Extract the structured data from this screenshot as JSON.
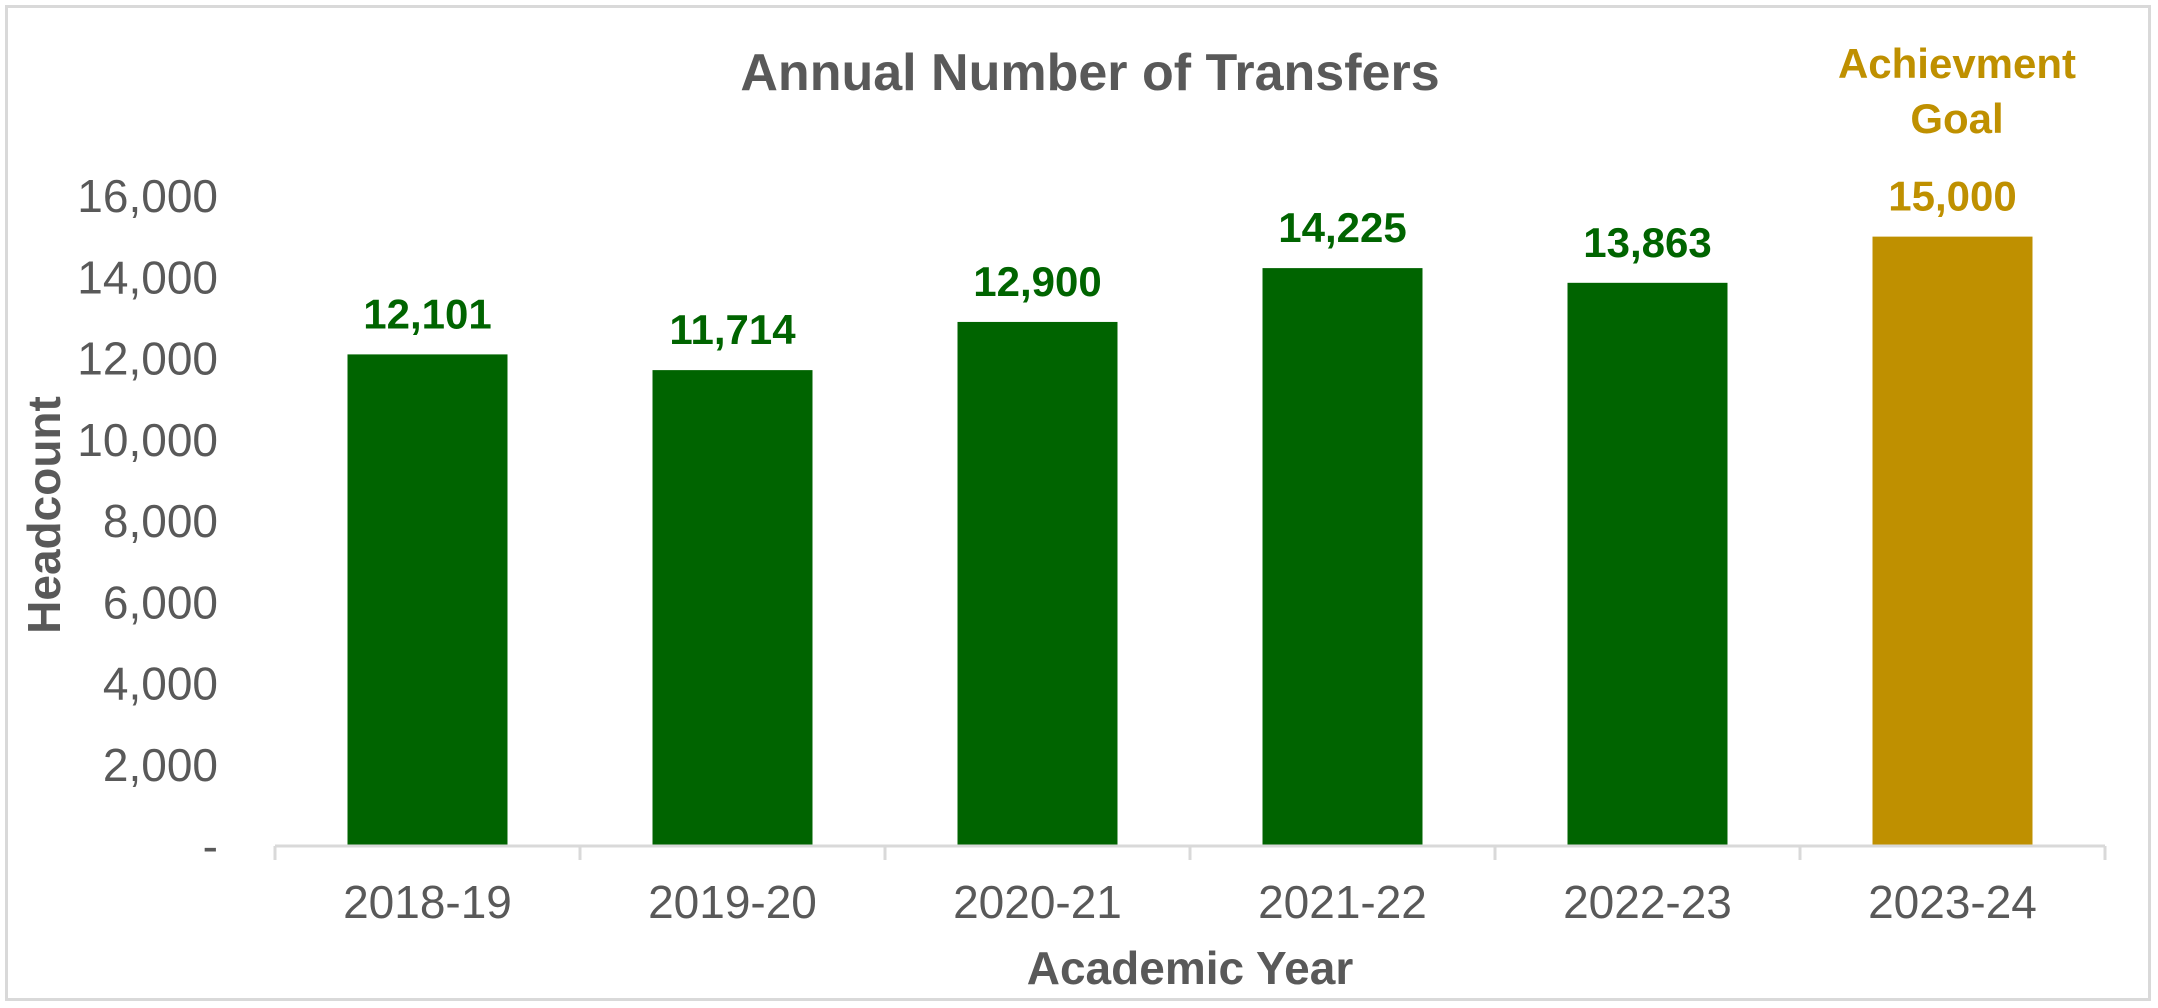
{
  "colors": {
    "actual": "#006400",
    "goal": "#BF9000",
    "axis_text": "#595959",
    "axis_line": "#d9d9d9"
  },
  "annotations": {
    "goal_line1": "Achievment",
    "goal_line2": "Goal"
  },
  "chart_data": {
    "type": "bar",
    "title": "Annual Number of Transfers",
    "xlabel": "Academic Year",
    "ylabel": "Headcount",
    "categories": [
      "2018-19",
      "2019-20",
      "2020-21",
      "2021-22",
      "2022-23",
      "2023-24"
    ],
    "values": [
      12101,
      11714,
      12900,
      14225,
      13863,
      15000
    ],
    "data_labels": [
      "12,101",
      "11,714",
      "12,900",
      "14,225",
      "13,863",
      "15,000"
    ],
    "bar_kind": [
      "actual",
      "actual",
      "actual",
      "actual",
      "actual",
      "goal"
    ],
    "ylim": [
      0,
      16000
    ],
    "yticks": [
      0,
      2000,
      4000,
      6000,
      8000,
      10000,
      12000,
      14000,
      16000
    ],
    "ytick_labels": [
      "-",
      "2,000",
      "4,000",
      "6,000",
      "8,000",
      "10,000",
      "12,000",
      "14,000",
      "16,000"
    ],
    "grid": false,
    "legend": "none"
  }
}
